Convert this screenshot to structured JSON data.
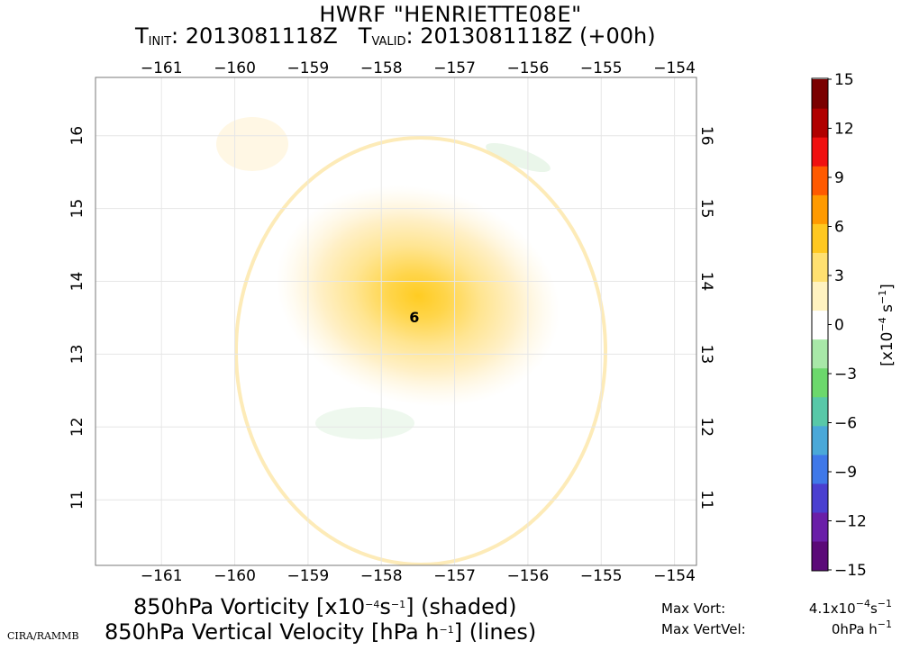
{
  "header": {
    "model_storm": "HWRF \"HENRIETTE08E\"",
    "tinit_label": "T",
    "tinit_sub": "INIT",
    "tinit_value": "2013081118Z",
    "tvalid_label": "T",
    "tvalid_sub": "VALID",
    "tvalid_value": "2013081118Z (+00h)"
  },
  "map": {
    "lon_ticks": [
      -161,
      -160,
      -159,
      -158,
      -157,
      -156,
      -155,
      -154
    ],
    "lat_ticks": [
      11,
      12,
      13,
      14,
      15,
      16
    ],
    "lon_range": [
      -161.9,
      -153.7
    ],
    "lat_range": [
      10.1,
      16.8
    ],
    "storm_symbol": "6",
    "storm_center": {
      "lon": -157.55,
      "lat": 13.5
    },
    "vorticity_max_center": {
      "lon": -157.5,
      "lat": 13.8
    },
    "storm_color": "#ff0000"
  },
  "colorbar": {
    "tick_labels": [
      "15",
      "12",
      "9",
      "6",
      "3",
      "0",
      "−3",
      "−6",
      "−9",
      "−12",
      "−15"
    ],
    "tick_values": [
      15,
      12,
      9,
      6,
      3,
      0,
      -3,
      -6,
      -9,
      -12,
      -15
    ],
    "unit_base": "[x10",
    "unit_exp1": "−4",
    "unit_mid": " s",
    "unit_exp2": "−1",
    "unit_end": "]",
    "range": [
      -15,
      15
    ],
    "colors": [
      "#5b0a78",
      "#6a1fa8",
      "#4a3fd0",
      "#3f78e8",
      "#4aa8d8",
      "#58c8a8",
      "#6cd86c",
      "#a8e8a8",
      "#ffffff",
      "#fff2c0",
      "#ffe070",
      "#ffc820",
      "#ff9a00",
      "#ff5a00",
      "#f01010",
      "#b00000",
      "#7a0000"
    ]
  },
  "caption": {
    "line1_pre": "850hPa Vorticity [x10",
    "line1_exp1": "−4",
    "line1_mid": "s",
    "line1_exp2": "−1",
    "line1_post": "] (shaded)",
    "line2_pre": "850hPa Vertical Velocity [hPa h",
    "line2_exp": "−1",
    "line2_post": "] (lines)"
  },
  "stats": {
    "vort_label": "Max Vort:",
    "vort_value": "4.1x10",
    "vort_exp1": "−4",
    "vort_mid": "s",
    "vort_exp2": "−1",
    "vertvel_label": "Max VertVel:",
    "vertvel_value": "0hPa h",
    "vertvel_exp": "−1"
  },
  "credit": "CIRA/RAMMB"
}
